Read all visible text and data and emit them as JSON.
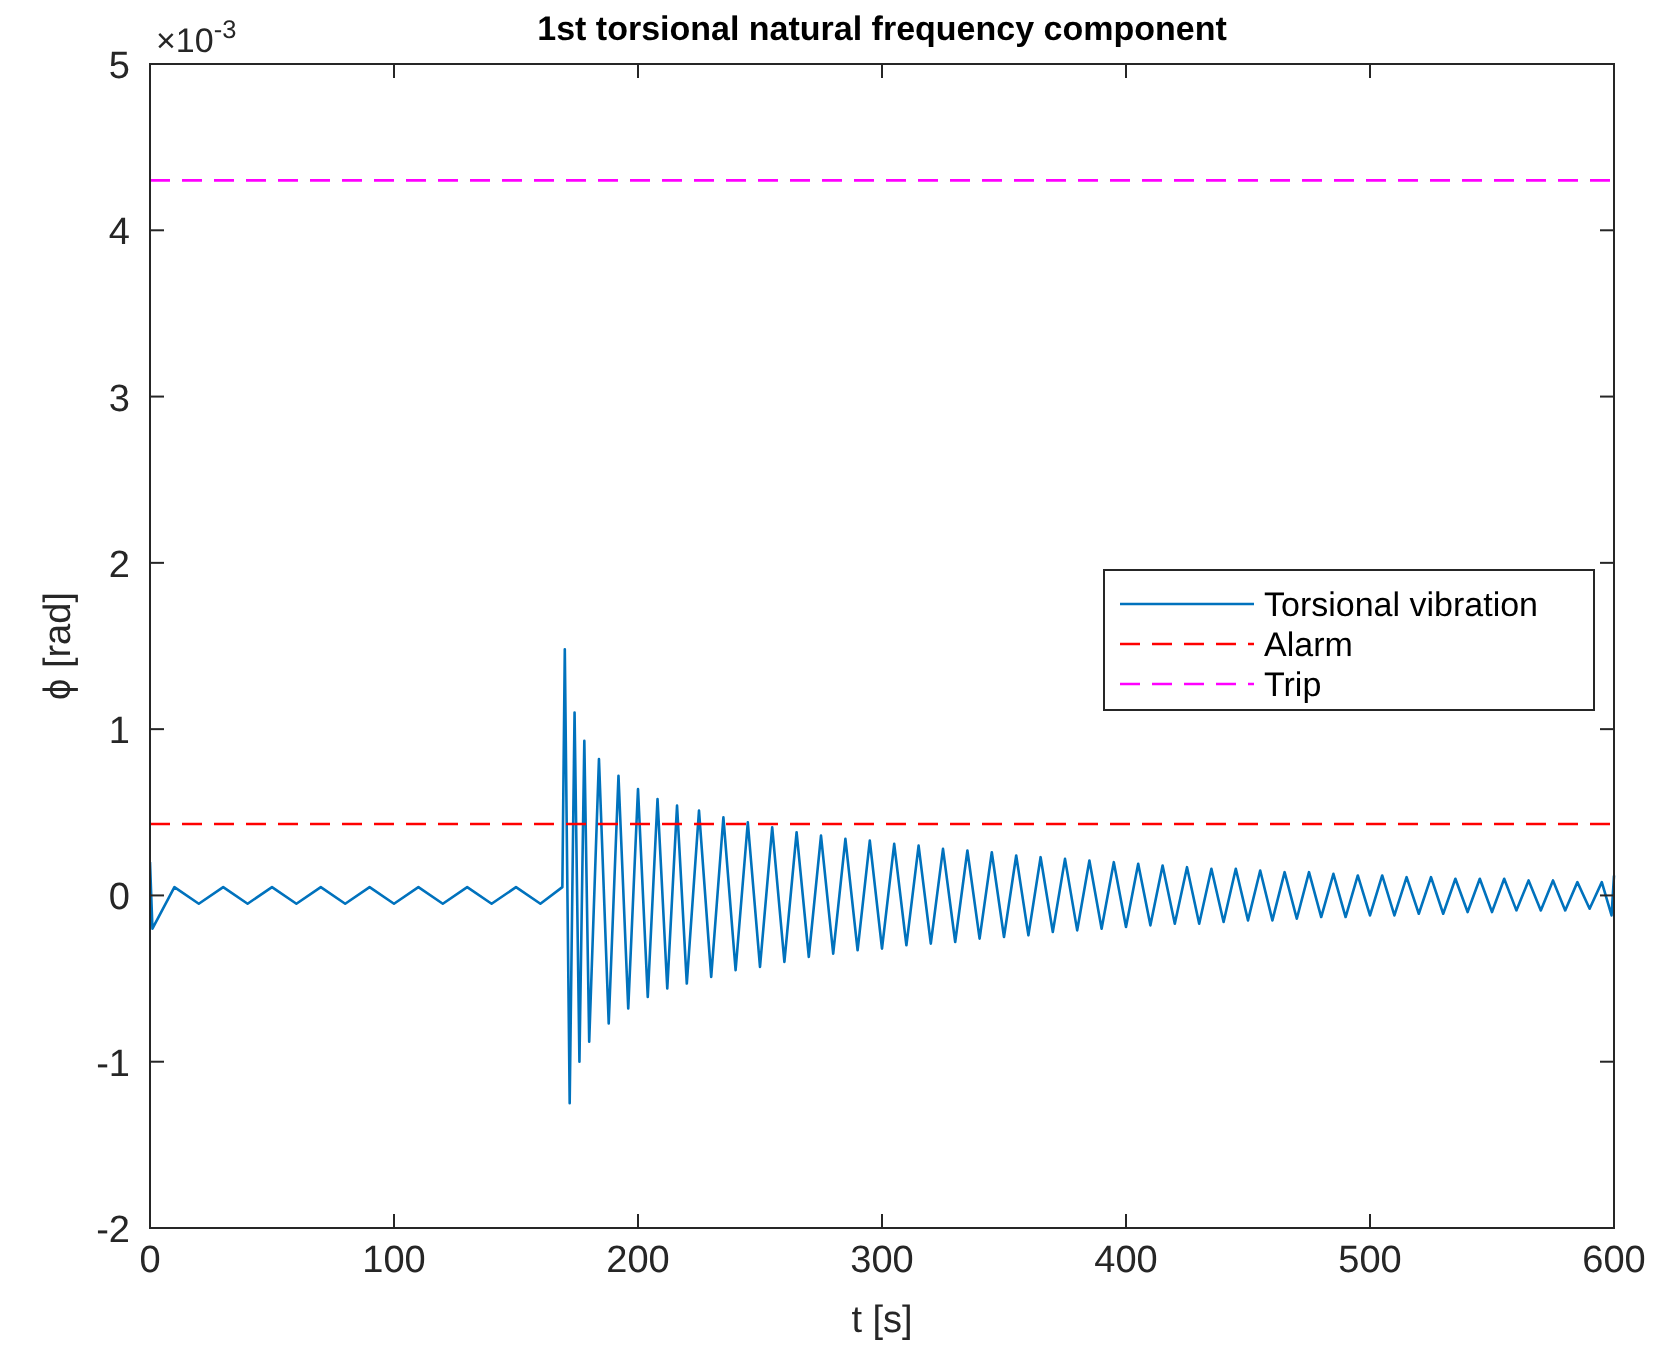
{
  "chart_data": {
    "type": "line",
    "title": "1st torsional natural frequency component",
    "xlabel": "t [s]",
    "ylabel": "ϕ [rad]",
    "annotations": [
      "×10$^{-3}$"
    ],
    "xlim": [
      0,
      600
    ],
    "xticks": [
      0,
      100,
      200,
      300,
      400,
      500,
      600
    ],
    "ylim": [
      -2,
      5
    ],
    "yticks": [
      -2,
      -1,
      0,
      1,
      2,
      3,
      4,
      5
    ],
    "grid": false,
    "legend": "right",
    "series": [
      {
        "name": "Torsional vibration",
        "color": "#0072bd",
        "line_style": "solid",
        "x": [
          0,
          1,
          10,
          20,
          30,
          40,
          50,
          60,
          70,
          80,
          90,
          100,
          110,
          120,
          130,
          140,
          150,
          160,
          169,
          170,
          172,
          174,
          176,
          178,
          180,
          184,
          188,
          192,
          196,
          200,
          204,
          208,
          212,
          216,
          220,
          225,
          230,
          235,
          240,
          245,
          250,
          255,
          260,
          265,
          270,
          275,
          280,
          285,
          290,
          295,
          300,
          305,
          310,
          315,
          320,
          325,
          330,
          335,
          340,
          345,
          350,
          355,
          360,
          365,
          370,
          375,
          380,
          385,
          390,
          395,
          400,
          405,
          410,
          415,
          420,
          425,
          430,
          435,
          440,
          445,
          450,
          455,
          460,
          465,
          470,
          475,
          480,
          485,
          490,
          495,
          500,
          505,
          510,
          515,
          520,
          525,
          530,
          535,
          540,
          545,
          550,
          555,
          560,
          565,
          570,
          575,
          580,
          585,
          590,
          595,
          599,
          600
        ],
        "values": [
          0.2,
          -0.2,
          0.05,
          -0.05,
          0.05,
          -0.05,
          0.05,
          -0.05,
          0.05,
          -0.05,
          0.05,
          -0.05,
          0.05,
          -0.05,
          0.05,
          -0.05,
          0.05,
          -0.05,
          0.05,
          1.48,
          -1.25,
          1.1,
          -1,
          0.93,
          -0.88,
          0.82,
          -0.77,
          0.72,
          -0.68,
          0.64,
          -0.61,
          0.58,
          -0.56,
          0.54,
          -0.53,
          0.51,
          -0.49,
          0.47,
          -0.45,
          0.44,
          -0.43,
          0.41,
          -0.4,
          0.38,
          -0.37,
          0.36,
          -0.35,
          0.34,
          -0.33,
          0.33,
          -0.32,
          0.31,
          -0.3,
          0.3,
          -0.29,
          0.28,
          -0.28,
          0.27,
          -0.26,
          0.26,
          -0.25,
          0.24,
          -0.24,
          0.23,
          -0.22,
          0.22,
          -0.21,
          0.21,
          -0.2,
          0.2,
          -0.19,
          0.19,
          -0.18,
          0.18,
          -0.17,
          0.17,
          -0.17,
          0.16,
          -0.16,
          0.16,
          -0.15,
          0.15,
          -0.15,
          0.14,
          -0.14,
          0.14,
          -0.13,
          0.13,
          -0.13,
          0.12,
          -0.12,
          0.12,
          -0.12,
          0.11,
          -0.11,
          0.11,
          -0.11,
          0.1,
          -0.1,
          0.1,
          -0.1,
          0.1,
          -0.09,
          0.09,
          -0.09,
          0.09,
          -0.09,
          0.08,
          -0.08,
          0.08,
          -0.12,
          0.12
        ]
      },
      {
        "name": "Alarm",
        "color": "#ff0000",
        "line_style": "dashed",
        "x": [
          0,
          600
        ],
        "values": [
          0.43,
          0.43
        ]
      },
      {
        "name": "Trip",
        "color": "#ff00ff",
        "line_style": "dashed",
        "x": [
          0,
          600
        ],
        "values": [
          4.3,
          4.3
        ]
      }
    ]
  }
}
